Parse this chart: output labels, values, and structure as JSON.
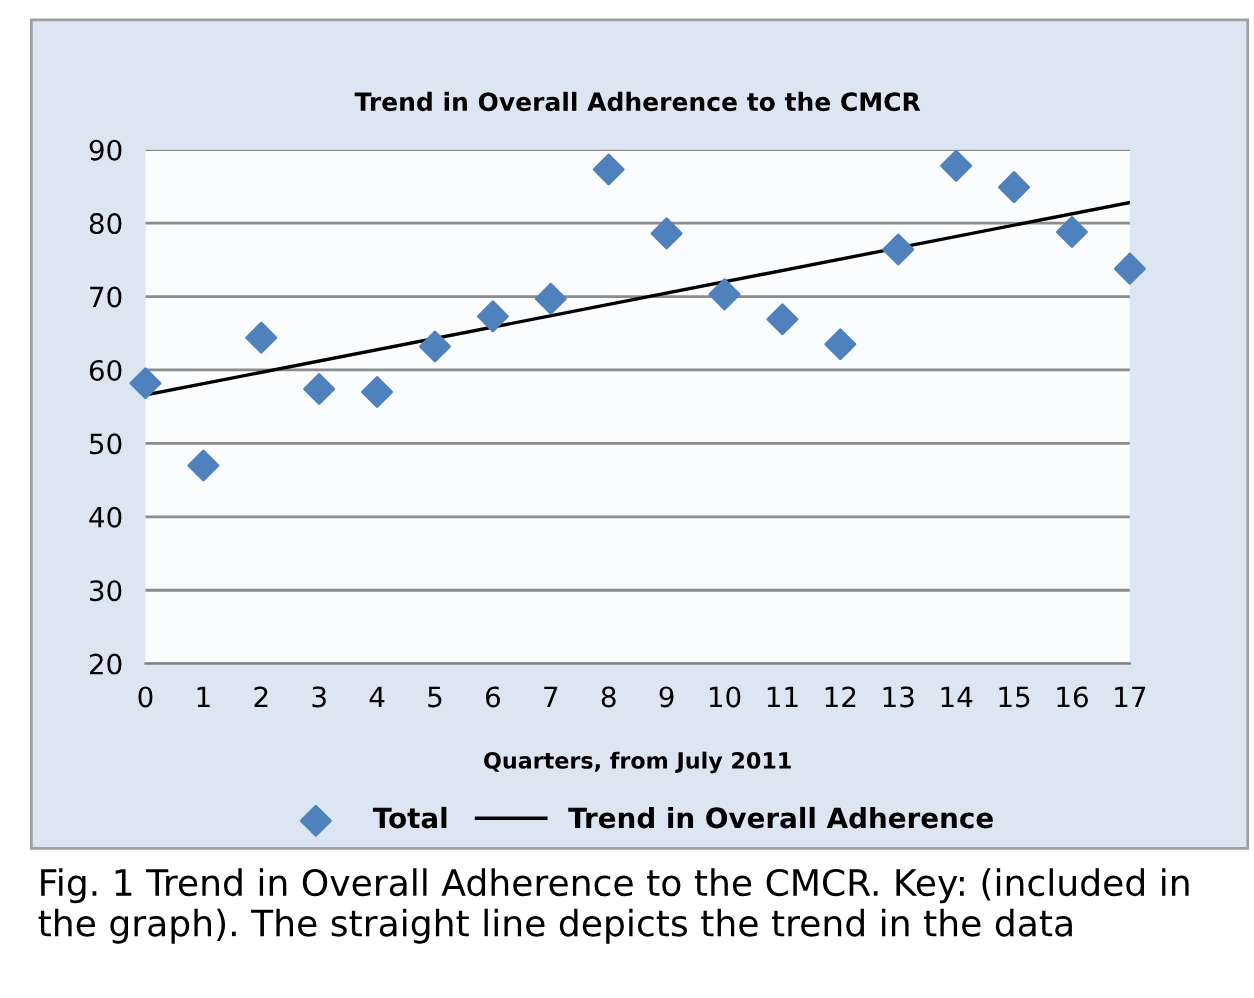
{
  "chart_data": {
    "type": "scatter",
    "title": "Trend in Overall Adherence to the CMCR",
    "xlabel": "Quarters, from July 2011",
    "x": [
      0,
      1,
      2,
      3,
      4,
      5,
      6,
      7,
      8,
      9,
      10,
      11,
      12,
      13,
      14,
      15,
      16,
      17
    ],
    "series": [
      {
        "name": "Total",
        "type": "scatter",
        "color": "#4f81bd",
        "marker": "diamond",
        "values": [
          58.2,
          47.0,
          64.4,
          57.4,
          57.0,
          63.2,
          67.3,
          69.7,
          87.3,
          78.6,
          70.3,
          66.9,
          63.5,
          76.4,
          87.8,
          84.9,
          78.8,
          73.8
        ]
      },
      {
        "name": "Trend in Overall Adherence",
        "type": "line",
        "color": "#000000",
        "marker": "none",
        "line_style": "solid",
        "x": [
          0,
          17
        ],
        "values": [
          56.6,
          82.8
        ]
      }
    ],
    "xlim": [
      0,
      17
    ],
    "xticks": [
      0,
      1,
      2,
      3,
      4,
      5,
      6,
      7,
      8,
      9,
      10,
      11,
      12,
      13,
      14,
      15,
      16,
      17
    ],
    "ylim": [
      20,
      90
    ],
    "yticks": [
      20,
      30,
      40,
      50,
      60,
      70,
      80,
      90
    ],
    "grid": "y",
    "legend": "bottom",
    "annotations": [
      "Fig. 1 Trend in Overall Adherence to the CMCR. Key: (included in the graph). The straight line depicts the trend in the data"
    ]
  }
}
